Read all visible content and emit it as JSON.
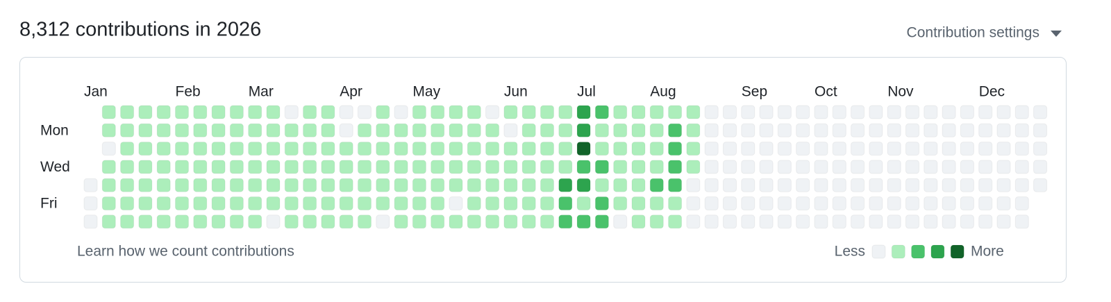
{
  "header": {
    "title": "8,312 contributions in 2026",
    "settings": "Contribution settings"
  },
  "graph": {
    "months": [
      {
        "label": "Jan",
        "week": 0
      },
      {
        "label": "Feb",
        "week": 5
      },
      {
        "label": "Mar",
        "week": 9
      },
      {
        "label": "Apr",
        "week": 14
      },
      {
        "label": "May",
        "week": 18
      },
      {
        "label": "Jun",
        "week": 23
      },
      {
        "label": "Jul",
        "week": 27
      },
      {
        "label": "Aug",
        "week": 31
      },
      {
        "label": "Sep",
        "week": 36
      },
      {
        "label": "Oct",
        "week": 40
      },
      {
        "label": "Nov",
        "week": 44
      },
      {
        "label": "Dec",
        "week": 49
      }
    ],
    "days": [
      null,
      "Mon",
      null,
      "Wed",
      null,
      "Fri",
      null
    ],
    "colors": [
      "#eff2f5",
      "#aceebb",
      "#4ac26b",
      "#2da44e",
      "#116329"
    ],
    "levels": [
      [
        null,
        1,
        1,
        1,
        1,
        1,
        1,
        1,
        1,
        1,
        1,
        0,
        1,
        1,
        0,
        0,
        1,
        0,
        1,
        1,
        1,
        1,
        0,
        1,
        1,
        1,
        1,
        3,
        2,
        1,
        1,
        1,
        1,
        1,
        0,
        0,
        0,
        0,
        0,
        0,
        0,
        0,
        0,
        0,
        0,
        0,
        0,
        0,
        0,
        0,
        0,
        0,
        0
      ],
      [
        null,
        1,
        1,
        1,
        1,
        1,
        1,
        1,
        1,
        1,
        1,
        1,
        1,
        1,
        0,
        1,
        1,
        1,
        1,
        1,
        1,
        1,
        1,
        0,
        1,
        1,
        1,
        3,
        1,
        1,
        1,
        1,
        2,
        1,
        0,
        0,
        0,
        0,
        0,
        0,
        0,
        0,
        0,
        0,
        0,
        0,
        0,
        0,
        0,
        0,
        0,
        0,
        0
      ],
      [
        null,
        0,
        1,
        1,
        1,
        1,
        1,
        1,
        1,
        1,
        1,
        1,
        1,
        1,
        1,
        1,
        1,
        1,
        1,
        1,
        1,
        1,
        1,
        1,
        1,
        1,
        1,
        4,
        1,
        1,
        1,
        1,
        2,
        1,
        0,
        0,
        0,
        0,
        0,
        0,
        0,
        0,
        0,
        0,
        0,
        0,
        0,
        0,
        0,
        0,
        0,
        0,
        0
      ],
      [
        null,
        1,
        1,
        1,
        1,
        1,
        1,
        1,
        1,
        1,
        1,
        1,
        1,
        1,
        1,
        1,
        1,
        1,
        1,
        1,
        1,
        1,
        1,
        1,
        1,
        1,
        1,
        2,
        2,
        1,
        1,
        1,
        2,
        1,
        0,
        0,
        0,
        0,
        0,
        0,
        0,
        0,
        0,
        0,
        0,
        0,
        0,
        0,
        0,
        0,
        0,
        0,
        0
      ],
      [
        0,
        1,
        1,
        1,
        1,
        1,
        1,
        1,
        1,
        1,
        1,
        1,
        1,
        1,
        1,
        1,
        1,
        1,
        1,
        1,
        1,
        1,
        1,
        1,
        1,
        1,
        3,
        3,
        1,
        1,
        1,
        2,
        2,
        0,
        0,
        0,
        0,
        0,
        0,
        0,
        0,
        0,
        0,
        0,
        0,
        0,
        0,
        0,
        0,
        0,
        0,
        0,
        0
      ],
      [
        0,
        1,
        1,
        1,
        1,
        1,
        1,
        1,
        1,
        1,
        1,
        1,
        1,
        1,
        1,
        1,
        1,
        1,
        1,
        1,
        0,
        1,
        1,
        1,
        1,
        1,
        2,
        1,
        2,
        1,
        1,
        1,
        1,
        0,
        0,
        0,
        0,
        0,
        0,
        0,
        0,
        0,
        0,
        0,
        0,
        0,
        0,
        0,
        0,
        0,
        0,
        0,
        null
      ],
      [
        0,
        1,
        1,
        1,
        1,
        1,
        1,
        1,
        1,
        1,
        0,
        1,
        1,
        1,
        1,
        1,
        0,
        1,
        1,
        1,
        1,
        1,
        1,
        1,
        1,
        1,
        2,
        2,
        2,
        0,
        1,
        1,
        1,
        0,
        0,
        0,
        0,
        0,
        0,
        0,
        0,
        0,
        0,
        0,
        0,
        0,
        0,
        0,
        0,
        0,
        0,
        0,
        null
      ]
    ]
  },
  "footer": {
    "learn": "Learn how we count contributions",
    "less": "Less",
    "more": "More"
  }
}
